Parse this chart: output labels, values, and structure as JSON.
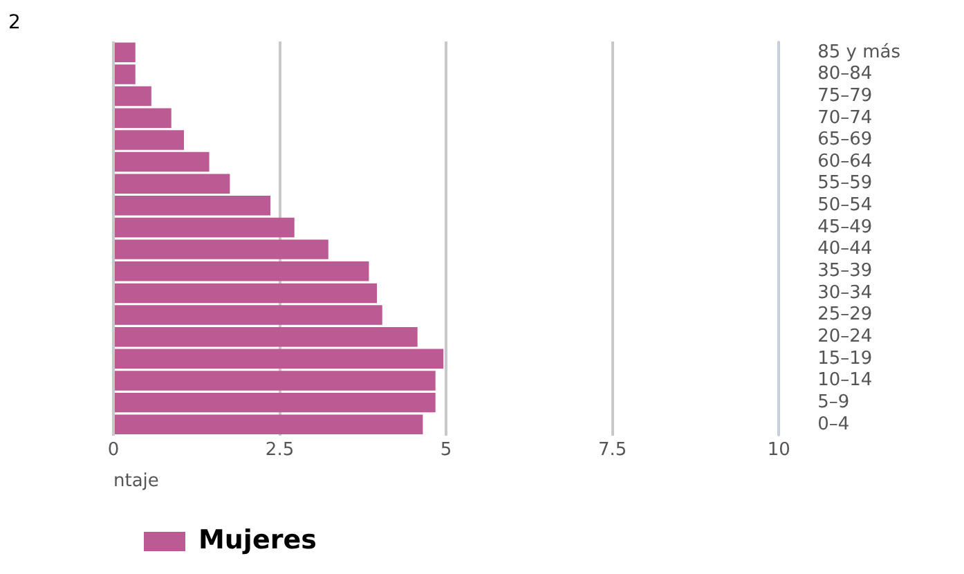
{
  "chart_data": {
    "type": "bar",
    "orientation": "horizontal",
    "categories": [
      "85 y más",
      "80–84",
      "75–79",
      "70–74",
      "65–69",
      "60–64",
      "55–59",
      "50–54",
      "45–49",
      "40–44",
      "35–39",
      "30–34",
      "25–29",
      "20–24",
      "15–19",
      "10–14",
      "5–9",
      "0–4"
    ],
    "series": [
      {
        "name": "Mujeres",
        "color": "#bb5a93",
        "values": [
          0.33,
          0.33,
          0.57,
          0.87,
          1.06,
          1.44,
          1.75,
          2.36,
          2.72,
          3.23,
          3.84,
          3.96,
          4.04,
          4.57,
          4.96,
          4.84,
          4.84,
          4.65
        ]
      }
    ],
    "xlim": [
      0,
      10
    ],
    "xticks": [
      0,
      2.5,
      5,
      7.5,
      10
    ],
    "xlabel": "ntaje",
    "grid": "x",
    "legend": "bottom left",
    "annotations": [
      "2"
    ]
  }
}
